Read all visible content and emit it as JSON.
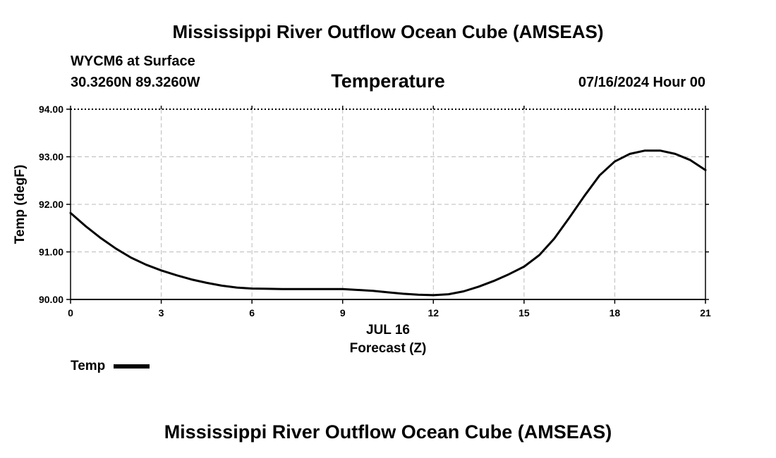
{
  "header": {
    "title": "Mississippi River Outflow Ocean Cube (AMSEAS)",
    "station": "WYCM6 at Surface",
    "coords": "30.3260N  89.3260W",
    "variable": "Temperature",
    "datetime": "07/16/2024 Hour 00"
  },
  "footer": {
    "title": "Mississippi River Outflow Ocean Cube (AMSEAS)"
  },
  "colors": {
    "line": "#000000",
    "grid": "#bbbbbb",
    "axis": "#000000"
  },
  "chart_data": {
    "type": "line",
    "title": "Temperature",
    "xlabel": "Forecast (Z)",
    "xlabel_date": "JUL 16",
    "ylabel": "Temp (degF)",
    "xlim": [
      0,
      21
    ],
    "ylim": [
      90.0,
      94.0
    ],
    "x_ticks": [
      0,
      3,
      6,
      9,
      12,
      15,
      18,
      21
    ],
    "x_tick_labels": [
      "0",
      "3",
      "6",
      "9",
      "12",
      "15",
      "18",
      "21"
    ],
    "y_ticks": [
      90.0,
      91.0,
      92.0,
      93.0,
      94.0
    ],
    "y_tick_labels": [
      "90.00",
      "91.00",
      "92.00",
      "93.00",
      "94.00"
    ],
    "grid": true,
    "legend": [
      {
        "name": "Temp",
        "placement": "bottom-left"
      }
    ],
    "series": [
      {
        "name": "Temp",
        "x": [
          0,
          0.5,
          1,
          1.5,
          2,
          2.5,
          3,
          3.5,
          4,
          4.5,
          5,
          5.5,
          6,
          7,
          8,
          9,
          9.5,
          10,
          10.5,
          11,
          11.5,
          12,
          12.5,
          13,
          13.5,
          14,
          14.5,
          15,
          15.5,
          16,
          16.5,
          17,
          17.5,
          18,
          18.5,
          19,
          19.5,
          20,
          20.5,
          21
        ],
        "values": [
          91.82,
          91.54,
          91.29,
          91.07,
          90.88,
          90.73,
          90.61,
          90.51,
          90.42,
          90.35,
          90.29,
          90.25,
          90.23,
          90.22,
          90.22,
          90.22,
          90.2,
          90.18,
          90.15,
          90.12,
          90.1,
          90.09,
          90.11,
          90.17,
          90.27,
          90.39,
          90.53,
          90.69,
          90.93,
          91.28,
          91.72,
          92.18,
          92.61,
          92.9,
          93.06,
          93.13,
          93.13,
          93.06,
          92.93,
          92.72
        ]
      }
    ]
  }
}
